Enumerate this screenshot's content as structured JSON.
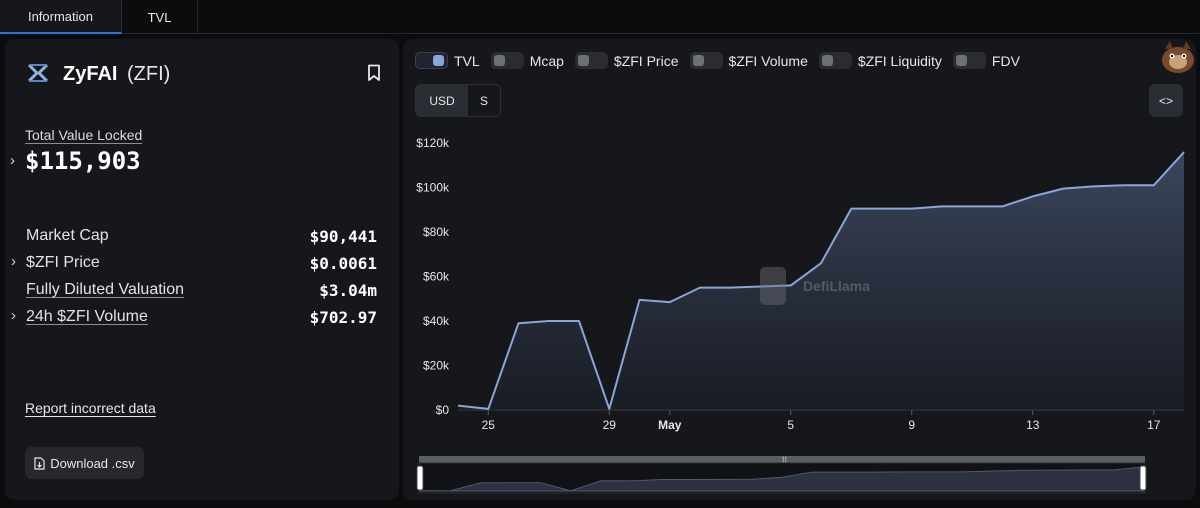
{
  "tabs": [
    {
      "label": "Information"
    },
    {
      "label": "TVL"
    }
  ],
  "protocol": {
    "name": "ZyFAI",
    "ticker": "(ZFI)"
  },
  "tvl": {
    "label": "Total Value Locked",
    "value": "$115,903"
  },
  "stats": [
    {
      "label": "Market Cap",
      "value": "$90,441"
    },
    {
      "label": "$ZFI Price",
      "value": "$0.0061"
    },
    {
      "label": "Fully Diluted Valuation",
      "value": "$3.04m"
    },
    {
      "label": "24h $ZFI Volume",
      "value": "$702.97"
    }
  ],
  "actions": {
    "report": "Report incorrect data",
    "download": "Download .csv"
  },
  "toggles": [
    {
      "label": "TVL",
      "on": true
    },
    {
      "label": "Mcap",
      "on": false
    },
    {
      "label": "$ZFI Price",
      "on": false
    },
    {
      "label": "$ZFI Volume",
      "on": false
    },
    {
      "label": "$ZFI Liquidity",
      "on": false
    },
    {
      "label": "FDV",
      "on": false
    }
  ],
  "units": [
    {
      "label": "USD"
    },
    {
      "label": "S"
    }
  ],
  "embed_label": "<>",
  "watermark": "DefiLlama",
  "colors": {
    "line": "#8aa5d8",
    "background": "#16171a",
    "panel": "#0b0c0e"
  },
  "chart_data": {
    "type": "area",
    "x": [
      "Apr 24",
      "Apr 25",
      "Apr 26",
      "Apr 27",
      "Apr 28",
      "Apr 29",
      "Apr 30",
      "May 1",
      "May 2",
      "May 3",
      "May 4",
      "May 5",
      "May 6",
      "May 7",
      "May 8",
      "May 9",
      "May 10",
      "May 11",
      "May 12",
      "May 13",
      "May 14",
      "May 15",
      "May 16",
      "May 17",
      "May 18"
    ],
    "series": [
      {
        "values": [
          2000,
          500,
          39000,
          40000,
          40000,
          500,
          49500,
          48500,
          55000,
          55000,
          55500,
          56000,
          66000,
          90500,
          90500,
          90500,
          91500,
          91500,
          91500,
          96000,
          99500,
          100500,
          101000,
          101000,
          115903
        ]
      }
    ],
    "xticks": [
      "25",
      "29",
      "May",
      "5",
      "9",
      "13",
      "17"
    ],
    "yticks": [
      "$0",
      "$20k",
      "$40k",
      "$60k",
      "$80k",
      "$100k",
      "$120k"
    ],
    "ylim": [
      0,
      120000
    ]
  }
}
